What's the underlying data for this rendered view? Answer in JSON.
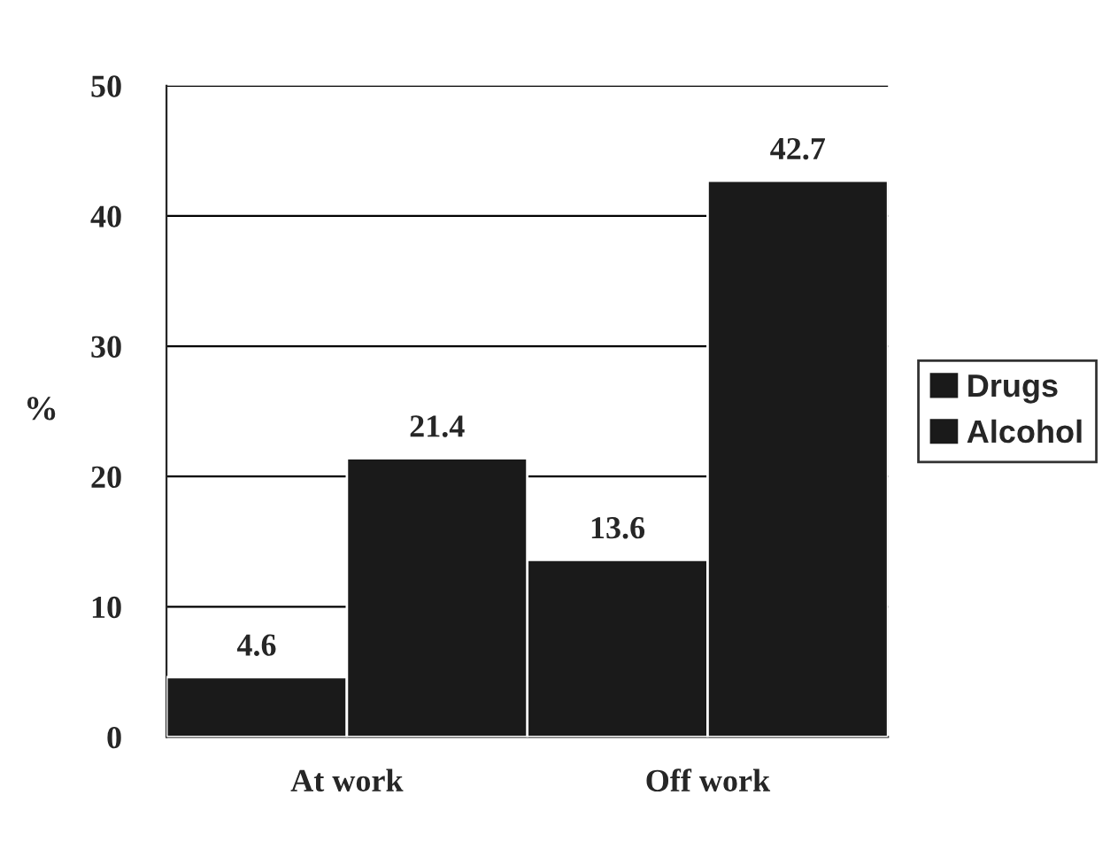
{
  "chart_data": {
    "type": "bar",
    "ylabel": "%",
    "categories": [
      "At work",
      "Off work"
    ],
    "series": [
      {
        "name": "Drugs",
        "color": "#1a1a1a",
        "values": [
          4.6,
          13.6
        ]
      },
      {
        "name": "Alcohol",
        "color": "#1a1a1a",
        "values": [
          21.4,
          42.7
        ]
      }
    ],
    "ylim": [
      0,
      50
    ],
    "yticks": [
      0,
      10,
      20,
      30,
      40,
      50
    ],
    "grid": "y",
    "legend": "right",
    "data_labels": true
  }
}
